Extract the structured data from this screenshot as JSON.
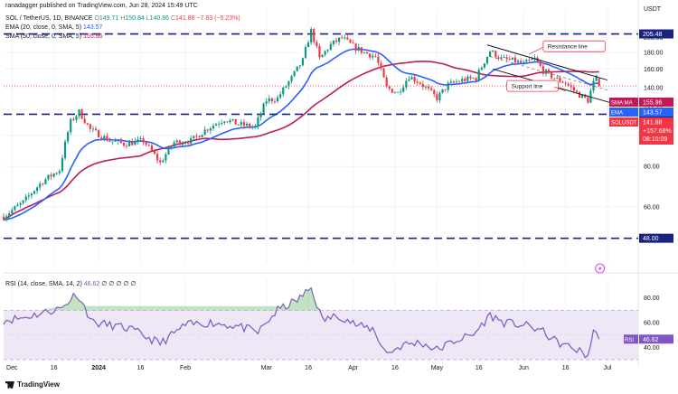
{
  "header": {
    "published_by": "ranadagger published on TradingView.com, Jun 28, 2024 15:49 UTC",
    "symbol": "SOL / TetherUS, 1D, BINANCE",
    "o_label": "O",
    "o_value": "149.71",
    "h_label": "H",
    "h_value": "150.84",
    "l_label": "L",
    "l_value": "140.86",
    "c_label": "C",
    "c_value": "141.88",
    "change": "−7.83 (−5.23%)"
  },
  "legends": {
    "ema": "EMA (20, close, 0, SMA, 5)",
    "ema_value": "143.57",
    "sma": "SMA (50, close, 0, SMA, 5)",
    "sma_value": "155.96",
    "rsi": "RSI (14, close, SMA, 14, 2)",
    "rsi_value": "46.62",
    "rsi_extra": "∅ ∅ ∅ ∅ ∅"
  },
  "footer": {
    "brand": "TradingView"
  },
  "colors": {
    "up": "#089981",
    "down": "#f23645",
    "ema": "#2962ff",
    "sma": "#c2185b",
    "hline": "#1a237e",
    "rsi": "#7e57c2",
    "rsi_band": "#ede7f6",
    "trend": "#131722",
    "grid": "#f0f3fa"
  },
  "chart_data": [
    {
      "type": "candlestick",
      "title": "SOL / TetherUS, 1D, BINANCE",
      "y_axis_label": "USDT",
      "scale": "log",
      "ylim": [
        40,
        230
      ],
      "y_ticks": [
        60.0,
        80.0,
        100.0,
        120.0,
        140.0,
        160.0,
        180.0,
        200.0
      ],
      "x_tick_labels": [
        "Dec",
        "16",
        "2024",
        "16",
        "Feb",
        "Mar",
        "16",
        "Apr",
        "16",
        "May",
        "16",
        "Jun",
        "16",
        "Jul"
      ],
      "x_tick_dates": [
        "2023-12-01",
        "2023-12-16",
        "2024-01-01",
        "2024-01-16",
        "2024-02-01",
        "2024-03-01",
        "2024-03-16",
        "2024-04-01",
        "2024-04-16",
        "2024-05-01",
        "2024-05-16",
        "2024-06-01",
        "2024-06-16",
        "2024-07-01"
      ],
      "x_range": [
        "2023-11-28",
        "2024-07-12"
      ],
      "horizontal_levels": [
        {
          "value": 205.48,
          "label": "205.48"
        },
        {
          "value": 116.0,
          "label": "116.00"
        },
        {
          "value": 48.0,
          "label": "48.00"
        }
      ],
      "price_labels": [
        {
          "name": "SMA:MA",
          "value": "155.96"
        },
        {
          "name": "EMA",
          "value": "143.57"
        },
        {
          "name": "SOLUSDT",
          "value": "141.88",
          "extra1": "+157.68%",
          "extra2": "08:10:09"
        }
      ],
      "annotations": [
        {
          "text": "Resistance line",
          "date": "2024-06-08",
          "price": 187
        },
        {
          "text": "Support line",
          "date": "2024-05-26",
          "price": 141
        }
      ],
      "trendlines": [
        {
          "name": "resistance",
          "from": [
            "2024-05-19",
            190
          ],
          "to": [
            "2024-07-01",
            148
          ]
        },
        {
          "name": "support",
          "from": [
            "2024-05-21",
            160
          ],
          "to": [
            "2024-07-02",
            126
          ]
        }
      ],
      "ohlc_anchors": [
        [
          "2023-11-28",
          56
        ],
        [
          "2023-12-05",
          62
        ],
        [
          "2023-12-12",
          72
        ],
        [
          "2023-12-18",
          78
        ],
        [
          "2023-12-22",
          110
        ],
        [
          "2023-12-25",
          118
        ],
        [
          "2023-12-29",
          104
        ],
        [
          "2024-01-05",
          96
        ],
        [
          "2024-01-10",
          94
        ],
        [
          "2024-01-17",
          96
        ],
        [
          "2024-01-23",
          82
        ],
        [
          "2024-01-28",
          95
        ],
        [
          "2024-02-03",
          96
        ],
        [
          "2024-02-09",
          105
        ],
        [
          "2024-02-15",
          112
        ],
        [
          "2024-02-20",
          108
        ],
        [
          "2024-02-26",
          106
        ],
        [
          "2024-03-01",
          128
        ],
        [
          "2024-03-05",
          130
        ],
        [
          "2024-03-10",
          150
        ],
        [
          "2024-03-14",
          170
        ],
        [
          "2024-03-17",
          210
        ],
        [
          "2024-03-20",
          172
        ],
        [
          "2024-03-24",
          190
        ],
        [
          "2024-03-28",
          200
        ],
        [
          "2024-04-01",
          188
        ],
        [
          "2024-04-05",
          180
        ],
        [
          "2024-04-09",
          175
        ],
        [
          "2024-04-13",
          140
        ],
        [
          "2024-04-17",
          135
        ],
        [
          "2024-04-21",
          152
        ],
        [
          "2024-04-25",
          145
        ],
        [
          "2024-05-01",
          130
        ],
        [
          "2024-05-05",
          143
        ],
        [
          "2024-05-10",
          148
        ],
        [
          "2024-05-15",
          150
        ],
        [
          "2024-05-20",
          182
        ],
        [
          "2024-05-24",
          172
        ],
        [
          "2024-05-28",
          170
        ],
        [
          "2024-06-01",
          166
        ],
        [
          "2024-06-05",
          172
        ],
        [
          "2024-06-08",
          158
        ],
        [
          "2024-06-12",
          150
        ],
        [
          "2024-06-16",
          145
        ],
        [
          "2024-06-20",
          135
        ],
        [
          "2024-06-24",
          128
        ],
        [
          "2024-06-26",
          145
        ],
        [
          "2024-06-27",
          150
        ],
        [
          "2024-06-28",
          141.88
        ]
      ],
      "ema_20_last": 143.57,
      "sma_50_last": 155.96
    },
    {
      "type": "line",
      "title": "RSI (14, close, SMA, 14, 2)",
      "ylim": [
        30,
        90
      ],
      "y_ticks": [
        40.0,
        60.0,
        80.0
      ],
      "bands": [
        30,
        70
      ],
      "last_value": 46.62,
      "anchors": [
        [
          "2023-11-28",
          62
        ],
        [
          "2023-12-05",
          64
        ],
        [
          "2023-12-12",
          68
        ],
        [
          "2023-12-19",
          72
        ],
        [
          "2023-12-24",
          84
        ],
        [
          "2023-12-30",
          60
        ],
        [
          "2024-01-05",
          58
        ],
        [
          "2024-01-12",
          55
        ],
        [
          "2024-01-23",
          43
        ],
        [
          "2024-02-01",
          58
        ],
        [
          "2024-02-10",
          60
        ],
        [
          "2024-02-20",
          57
        ],
        [
          "2024-02-27",
          52
        ],
        [
          "2024-03-05",
          70
        ],
        [
          "2024-03-12",
          78
        ],
        [
          "2024-03-17",
          88
        ],
        [
          "2024-03-21",
          62
        ],
        [
          "2024-03-27",
          66
        ],
        [
          "2024-04-03",
          57
        ],
        [
          "2024-04-08",
          55
        ],
        [
          "2024-04-13",
          35
        ],
        [
          "2024-04-19",
          42
        ],
        [
          "2024-04-25",
          44
        ],
        [
          "2024-05-01",
          38
        ],
        [
          "2024-05-08",
          46
        ],
        [
          "2024-05-14",
          50
        ],
        [
          "2024-05-20",
          66
        ],
        [
          "2024-05-25",
          60
        ],
        [
          "2024-06-01",
          58
        ],
        [
          "2024-06-07",
          54
        ],
        [
          "2024-06-13",
          44
        ],
        [
          "2024-06-20",
          38
        ],
        [
          "2024-06-24",
          33
        ],
        [
          "2024-06-26",
          53
        ],
        [
          "2024-06-28",
          46.62
        ]
      ]
    }
  ]
}
